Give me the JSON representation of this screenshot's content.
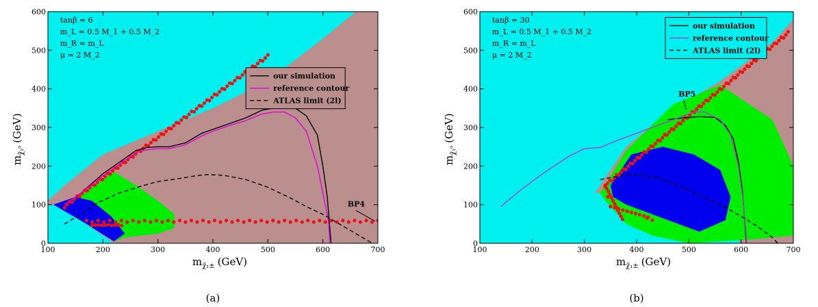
{
  "chart_data": [
    {
      "type": "scatter",
      "panel_label": "(a)",
      "xlabel_main": "m",
      "xlabel_sub": "χ̃₁±",
      "xlabel_unit": "(GeV)",
      "ylabel_main": "m",
      "ylabel_sub": "χ̃₁⁰",
      "ylabel_unit": "(GeV)",
      "xlim": [
        100,
        700
      ],
      "ylim": [
        0,
        600
      ],
      "x_ticks": [
        100,
        200,
        300,
        400,
        500,
        600,
        700
      ],
      "y_ticks": [
        0,
        100,
        200,
        300,
        400,
        500,
        600
      ],
      "params": [
        "tanβ = 6",
        "m_L = 0.5 M_1 + 0.5 M_2",
        "m_R = m_L",
        "μ = 2 M_2"
      ],
      "legend": {
        "placement": "right",
        "entries": [
          {
            "label": "our simulation",
            "color": "#000000",
            "dash": "solid"
          },
          {
            "label": "reference contour",
            "color": "#e000e0",
            "dash": "solid"
          },
          {
            "label": "ATLAS limit  (2l)",
            "color": "#000000",
            "dash": "dashed"
          }
        ]
      },
      "benchmark": {
        "label": "BP4",
        "point": [
          695,
          57
        ]
      },
      "colors": {
        "background": "#00f0f0",
        "excluded": "#bc8f8f",
        "green": "#00ee00",
        "blue": "#0000ee",
        "points": "#ee1111"
      },
      "regions": {
        "excluded": [
          [
            100,
            110
          ],
          [
            130,
            150
          ],
          [
            200,
            230
          ],
          [
            300,
            290
          ],
          [
            400,
            350
          ],
          [
            500,
            420
          ],
          [
            600,
            530
          ],
          [
            660,
            600
          ],
          [
            700,
            600
          ],
          [
            700,
            0
          ],
          [
            100,
            0
          ]
        ],
        "green": [
          [
            130,
            95
          ],
          [
            220,
            185
          ],
          [
            260,
            150
          ],
          [
            300,
            110
          ],
          [
            330,
            75
          ],
          [
            330,
            40
          ],
          [
            300,
            25
          ],
          [
            240,
            15
          ],
          [
            220,
            5
          ],
          [
            160,
            60
          ]
        ],
        "blue": [
          [
            110,
            100
          ],
          [
            150,
            120
          ],
          [
            180,
            110
          ],
          [
            215,
            70
          ],
          [
            240,
            25
          ],
          [
            220,
            5
          ],
          [
            170,
            50
          ]
        ],
        "cyan_patch": [
          [
            100,
            0
          ],
          [
            100,
            100
          ],
          [
            110,
            100
          ],
          [
            170,
            50
          ],
          [
            215,
            5
          ],
          [
            215,
            0
          ]
        ]
      },
      "series": [
        {
          "name": "our simulation",
          "color": "#000000",
          "dash": "solid",
          "points": [
            [
              130,
              100
            ],
            [
              160,
              130
            ],
            [
              200,
              180
            ],
            [
              240,
              220
            ],
            [
              260,
              240
            ],
            [
              280,
              248
            ],
            [
              300,
              250
            ],
            [
              320,
              250
            ],
            [
              350,
              260
            ],
            [
              380,
              285
            ],
            [
              400,
              295
            ],
            [
              430,
              310
            ],
            [
              460,
              325
            ],
            [
              490,
              345
            ],
            [
              510,
              350
            ],
            [
              550,
              350
            ],
            [
              570,
              330
            ],
            [
              590,
              280
            ],
            [
              600,
              200
            ],
            [
              608,
              120
            ],
            [
              612,
              50
            ],
            [
              615,
              0
            ]
          ]
        },
        {
          "name": "reference contour",
          "color": "#e000e0",
          "dash": "solid",
          "points": [
            [
              130,
              100
            ],
            [
              160,
              130
            ],
            [
              200,
              175
            ],
            [
              240,
              215
            ],
            [
              260,
              235
            ],
            [
              280,
              242
            ],
            [
              300,
              245
            ],
            [
              320,
              245
            ],
            [
              350,
              255
            ],
            [
              380,
              278
            ],
            [
              400,
              290
            ],
            [
              430,
              305
            ],
            [
              460,
              318
            ],
            [
              490,
              335
            ],
            [
              510,
              340
            ],
            [
              530,
              340
            ],
            [
              550,
              325
            ],
            [
              570,
              290
            ],
            [
              590,
              200
            ],
            [
              600,
              130
            ],
            [
              610,
              60
            ],
            [
              613,
              0
            ]
          ]
        },
        {
          "name": "ATLAS limit  (2l)",
          "color": "#000000",
          "dash": "dashed",
          "points": [
            [
              130,
              50
            ],
            [
              160,
              75
            ],
            [
              190,
              105
            ],
            [
              230,
              130
            ],
            [
              270,
              148
            ],
            [
              300,
              160
            ],
            [
              340,
              168
            ],
            [
              370,
              175
            ],
            [
              390,
              178
            ],
            [
              420,
              176
            ],
            [
              460,
              165
            ],
            [
              500,
              145
            ],
            [
              540,
              118
            ],
            [
              570,
              95
            ],
            [
              600,
              75
            ],
            [
              630,
              50
            ],
            [
              660,
              25
            ],
            [
              690,
              0
            ]
          ]
        }
      ],
      "scatter_diagonal": [
        [
          130,
          95
        ],
        [
          500,
          485
        ]
      ],
      "scatter_horizontal": {
        "x_range": [
          170,
          700
        ],
        "y": 57
      }
    },
    {
      "type": "scatter",
      "panel_label": "(b)",
      "xlabel_main": "m",
      "xlabel_sub": "χ̃₁±",
      "xlabel_unit": "(GeV)",
      "ylabel_main": "m",
      "ylabel_sub": "χ̃₁⁰",
      "ylabel_unit": "(GeV)",
      "xlim": [
        100,
        700
      ],
      "ylim": [
        0,
        600
      ],
      "x_ticks": [
        100,
        200,
        300,
        400,
        500,
        600,
        700
      ],
      "y_ticks": [
        0,
        100,
        200,
        300,
        400,
        500,
        600
      ],
      "params": [
        "tanβ = 30",
        "m_L = 0.5 M_1 + 0.5 M_2",
        "m_R = m_L",
        "μ = 2 M_2"
      ],
      "legend": {
        "placement": "top-right",
        "entries": [
          {
            "label": "our simulation",
            "color": "#000000",
            "dash": "solid"
          },
          {
            "label": "reference contour",
            "color": "#b040d0",
            "dash": "solid"
          },
          {
            "label": "ATLAS limit  (2l)",
            "color": "#000000",
            "dash": "dashed"
          }
        ]
      },
      "benchmark": {
        "label": "BP5",
        "point": [
          495,
          345
        ]
      },
      "colors": {
        "background": "#00f0f0",
        "excluded": "#bc8f8f",
        "green": "#00ee00",
        "blue": "#0000ee",
        "points": "#ee1111"
      },
      "regions": {
        "excluded": [
          [
            320,
            130
          ],
          [
            380,
            250
          ],
          [
            460,
            340
          ],
          [
            560,
            420
          ],
          [
            660,
            520
          ],
          [
            700,
            580
          ],
          [
            700,
            0
          ],
          [
            600,
            0
          ],
          [
            540,
            80
          ],
          [
            460,
            70
          ],
          [
            400,
            100
          ],
          [
            340,
            130
          ]
        ],
        "green": [
          [
            330,
            130
          ],
          [
            380,
            240
          ],
          [
            470,
            360
          ],
          [
            560,
            410
          ],
          [
            660,
            320
          ],
          [
            700,
            200
          ],
          [
            700,
            20
          ],
          [
            620,
            10
          ],
          [
            500,
            0
          ],
          [
            430,
            20
          ],
          [
            380,
            50
          ],
          [
            340,
            110
          ]
        ],
        "blue": [
          [
            350,
            150
          ],
          [
            390,
            230
          ],
          [
            450,
            250
          ],
          [
            510,
            230
          ],
          [
            560,
            190
          ],
          [
            580,
            120
          ],
          [
            570,
            60
          ],
          [
            520,
            30
          ],
          [
            460,
            60
          ],
          [
            420,
            80
          ],
          [
            380,
            100
          ],
          [
            355,
            120
          ]
        ]
      },
      "series": [
        {
          "name": "our simulation",
          "color": "#000000",
          "dash": "solid",
          "points": [
            [
              460,
              320
            ],
            [
              490,
              325
            ],
            [
              520,
              328
            ],
            [
              550,
              326
            ],
            [
              570,
              305
            ],
            [
              585,
              270
            ],
            [
              595,
              210
            ],
            [
              602,
              140
            ],
            [
              607,
              60
            ],
            [
              610,
              0
            ]
          ]
        },
        {
          "name": "reference contour",
          "color": "#b040d0",
          "dash": "solid",
          "points": [
            [
              140,
              95
            ],
            [
              180,
              140
            ],
            [
              220,
              180
            ],
            [
              270,
              225
            ],
            [
              300,
              245
            ],
            [
              330,
              248
            ],
            [
              360,
              265
            ],
            [
              400,
              285
            ],
            [
              440,
              305
            ],
            [
              480,
              325
            ],
            [
              510,
              340
            ],
            [
              530,
              340
            ],
            [
              560,
              320
            ],
            [
              580,
              280
            ],
            [
              595,
              200
            ],
            [
              603,
              120
            ],
            [
              608,
              50
            ],
            [
              611,
              0
            ]
          ]
        },
        {
          "name": "ATLAS limit  (2l)",
          "color": "#000000",
          "dash": "dashed",
          "points": [
            [
              330,
              165
            ],
            [
              370,
              175
            ],
            [
              400,
              178
            ],
            [
              440,
              170
            ],
            [
              480,
              150
            ],
            [
              520,
              125
            ],
            [
              560,
              100
            ],
            [
              600,
              70
            ],
            [
              630,
              45
            ],
            [
              660,
              15
            ],
            [
              670,
              0
            ]
          ]
        }
      ],
      "scatter_diagonal": [
        [
          340,
          150
        ],
        [
          690,
          545
        ]
      ],
      "scatter_curl": [
        [
          340,
          150
        ],
        [
          345,
          120
        ],
        [
          360,
          95
        ],
        [
          390,
          80
        ],
        [
          420,
          65
        ],
        [
          430,
          60
        ]
      ]
    }
  ]
}
